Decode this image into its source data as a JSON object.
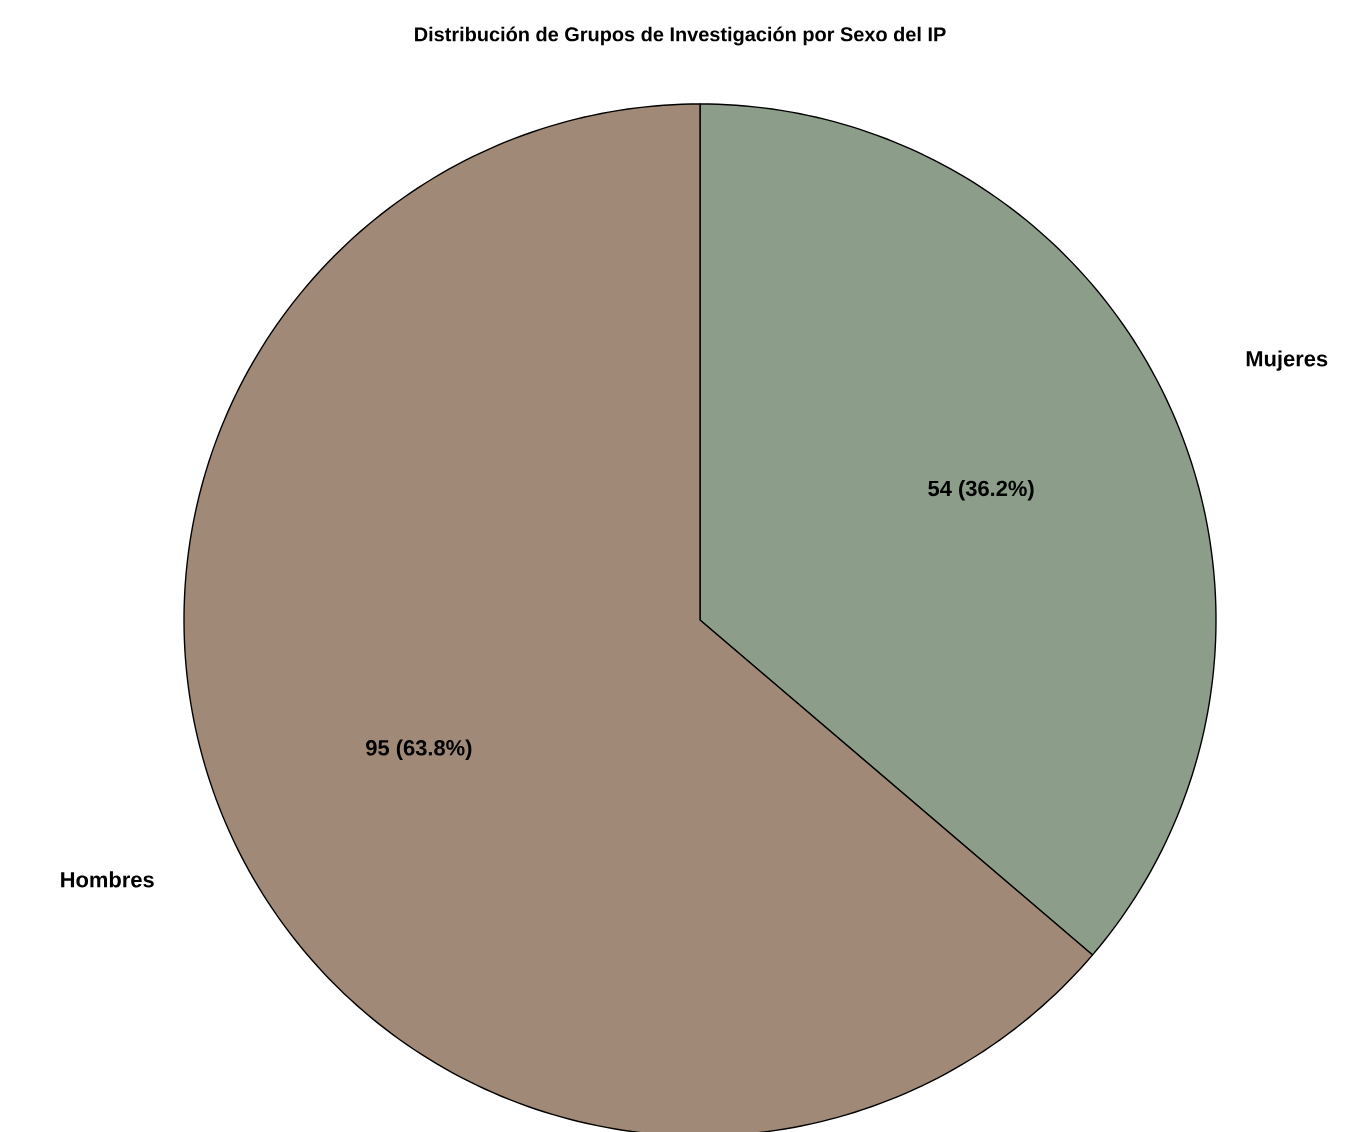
{
  "chart_data": {
    "type": "pie",
    "title": "Distribución de Grupos de Investigación por Sexo del IP",
    "categories": [
      "Mujeres",
      "Hombres"
    ],
    "values": [
      54,
      95
    ],
    "value_labels": [
      "54 (36.2%)",
      "95 (63.8%)"
    ],
    "colors": [
      "#8c9e8a",
      "#a08a77"
    ]
  }
}
